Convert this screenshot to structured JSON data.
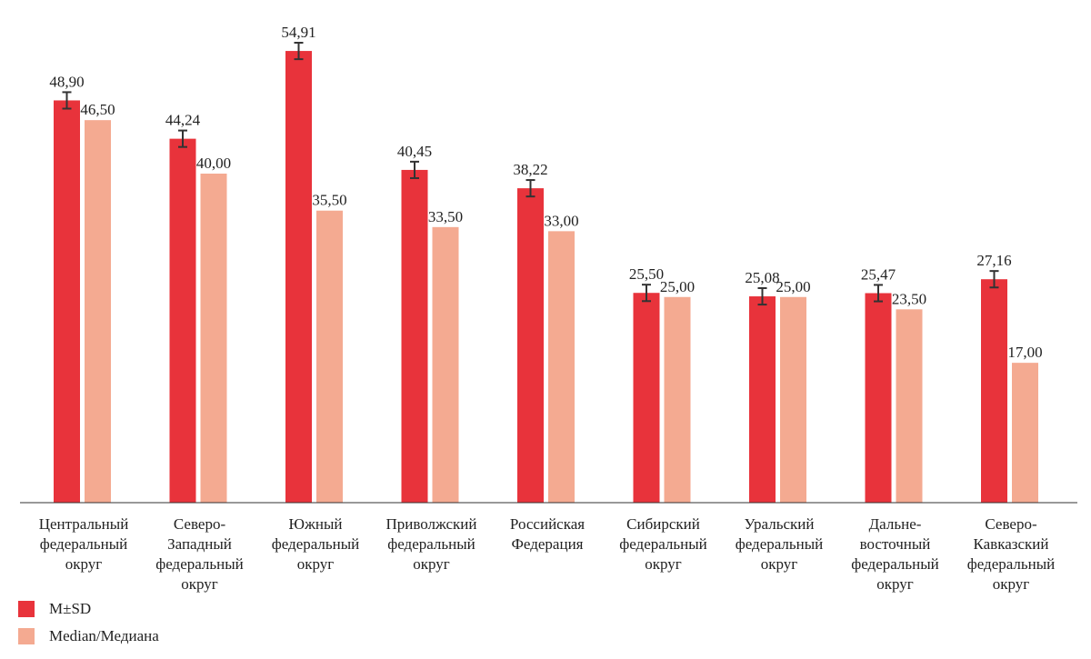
{
  "chart_data": {
    "type": "bar",
    "categories": [
      [
        "Центральный",
        "федеральный",
        "округ"
      ],
      [
        "Северо-",
        "Западный",
        "федеральный",
        "округ"
      ],
      [
        "Южный",
        "федеральный",
        "округ"
      ],
      [
        "Приволжский",
        "федеральный",
        "округ"
      ],
      [
        "Российская",
        "Федерация"
      ],
      [
        "Сибирский",
        "федеральный",
        "округ"
      ],
      [
        "Уральский",
        "федеральный",
        "округ"
      ],
      [
        "Дальне-",
        "восточный",
        "федеральный",
        "округ"
      ],
      [
        "Северо-",
        "Кавказский",
        "федеральный",
        "округ"
      ]
    ],
    "series": [
      {
        "name": "M±SD",
        "color": "#e8333b",
        "values": [
          48.9,
          44.24,
          54.91,
          40.45,
          38.22,
          25.5,
          25.08,
          25.47,
          27.16
        ],
        "labels": [
          "48,90",
          "44,24",
          "54,91",
          "40,45",
          "38,22",
          "25,50",
          "25,08",
          "25,47",
          "27,16"
        ],
        "error": [
          1.0,
          1.0,
          1.0,
          1.0,
          1.0,
          1.0,
          1.0,
          1.0,
          1.0
        ]
      },
      {
        "name": "Median/Медиана",
        "color": "#f4aa91",
        "values": [
          46.5,
          40.0,
          35.5,
          33.5,
          33.0,
          25.0,
          25.0,
          23.5,
          17.0
        ],
        "labels": [
          "46,50",
          "40,00",
          "35,50",
          "33,50",
          "33,00",
          "25,00",
          "25,00",
          "23,50",
          "17,00"
        ]
      }
    ],
    "ylim": [
      0,
      60
    ],
    "grid": false,
    "legend_position": "bottom-left"
  },
  "legend": {
    "items": [
      {
        "label": "M±SD",
        "color": "#e8333b"
      },
      {
        "label": "Median/Медиана",
        "color": "#f4aa91"
      }
    ]
  }
}
